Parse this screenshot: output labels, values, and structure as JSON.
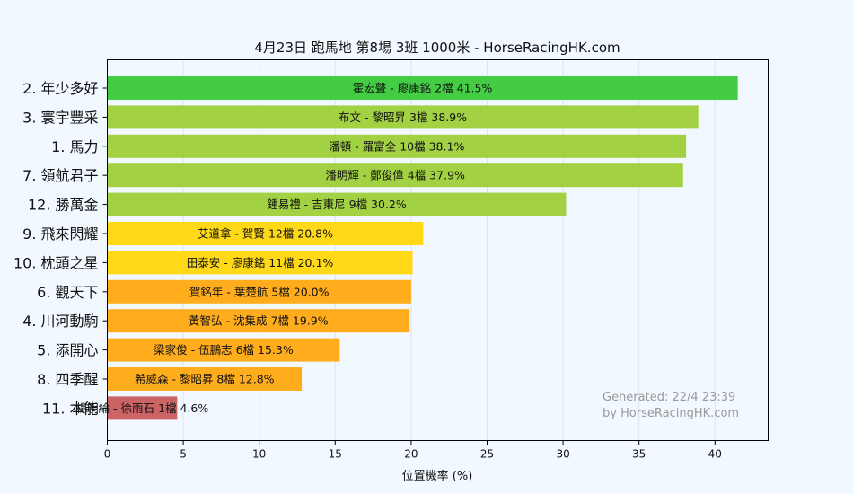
{
  "chart_data": {
    "type": "bar",
    "orientation": "horizontal",
    "title": "4月23日  跑馬地  第8場  3班  1000米 - HorseRacingHK.com",
    "xlabel": "位置機率 (%)",
    "ylabel": "",
    "xlim": [
      0,
      43.5
    ],
    "xticks": [
      0,
      5,
      10,
      15,
      20,
      25,
      30,
      35,
      40
    ],
    "grid": true,
    "categories": [
      "2. 年少多好",
      "3. 寰宇豐采",
      "1. 馬力",
      "7. 領航君子",
      "12. 勝萬金",
      "9. 飛來閃耀",
      "10. 枕頭之星",
      "6. 觀天下",
      "4. 川河動駒",
      "5. 添開心",
      "8. 四季醒",
      "11. 本能"
    ],
    "values": [
      41.5,
      38.9,
      38.1,
      37.9,
      30.2,
      20.8,
      20.1,
      20.0,
      19.9,
      15.3,
      12.8,
      4.6
    ],
    "bar_labels": [
      "霍宏聲 - 廖康銘 2檔  41.5%",
      "布文 - 黎昭昇 3檔  38.9%",
      "潘頓 - 羅富全 10檔  38.1%",
      "潘明輝 - 鄭俊偉 4檔  37.9%",
      "鍾易禮 - 吉東尼 9檔  30.2%",
      "艾道拿 - 賀賢 12檔  20.8%",
      "田泰安 - 廖康銘 11檔  20.1%",
      "賀銘年 - 葉楚航 5檔  20.0%",
      "黃智弘 - 沈集成 7檔  19.9%",
      "梁家俊 - 伍鵬志 6檔  15.3%",
      "希威森 - 黎昭昇 8檔  12.8%",
      "楊明綸 - 徐雨石 1檔  4.6%"
    ],
    "colors": [
      "#44cc44",
      "#a2d143",
      "#a2d143",
      "#a2d143",
      "#a2d143",
      "#ffd818",
      "#ffd818",
      "#ffad1d",
      "#ffad1d",
      "#ffad1d",
      "#ffad1d",
      "#cc6466"
    ],
    "watermark": [
      "Generated: 22/4 23:39",
      "by HorseRacingHK.com"
    ]
  }
}
